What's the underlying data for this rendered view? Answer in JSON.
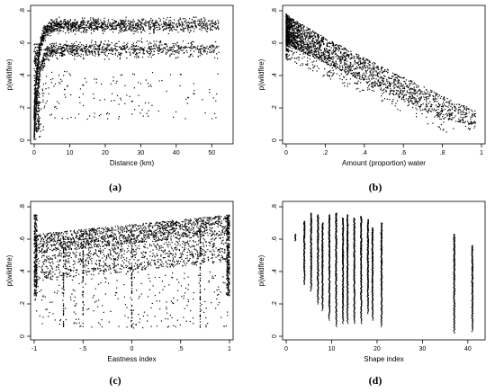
{
  "captions": {
    "a": "(a)",
    "b": "(b)",
    "c": "(c)",
    "d": "(d)"
  },
  "chart_data": [
    {
      "id": "a",
      "type": "scatter",
      "ylabel": "p(wildfire)",
      "xlabel": "Distance (km)",
      "xlim": [
        0,
        55
      ],
      "ylim": [
        0,
        0.8
      ],
      "xticks": [
        0,
        10,
        20,
        30,
        40,
        50
      ],
      "xtick_labels": [
        "0",
        "10",
        "20",
        "30",
        "40",
        "50"
      ],
      "yticks": [
        0,
        0.2,
        0.4,
        0.6,
        0.8
      ],
      "ytick_labels": [
        "0",
        ".2",
        ".4",
        ".6",
        ".8"
      ],
      "point_color": "#000000",
      "pattern": "saturating rise from ~0.05 at 0 km to a main band ~0.58–0.75 beyond 10 km, with a lower sub-band ~0.45–0.6 and sparse points down to ~0.1"
    },
    {
      "id": "b",
      "type": "scatter",
      "ylabel": "p(wildfire)",
      "xlabel": "Amount (proportion) water",
      "xlim": [
        0,
        1
      ],
      "ylim": [
        0,
        0.8
      ],
      "xticks": [
        0,
        0.2,
        0.4,
        0.6,
        0.8,
        1
      ],
      "xtick_labels": [
        "0",
        ".2",
        ".4",
        ".6",
        ".8",
        "1"
      ],
      "yticks": [
        0,
        0.2,
        0.4,
        0.6,
        0.8
      ],
      "ytick_labels": [
        "0",
        ".2",
        ".4",
        ".6",
        ".8"
      ],
      "point_color": "#000000",
      "pattern": "dense band ~0.5–0.78 near 0 declining to ~0.05–0.15 at 0.95"
    },
    {
      "id": "c",
      "type": "scatter",
      "ylabel": "p(wildfire)",
      "xlabel": "Eastness index",
      "xlim": [
        -1,
        1
      ],
      "ylim": [
        0,
        0.8
      ],
      "xticks": [
        -1,
        -0.5,
        0,
        0.5,
        1
      ],
      "xtick_labels": [
        "-1",
        "-.5",
        "0",
        ".5",
        "1"
      ],
      "yticks": [
        0,
        0.2,
        0.4,
        0.6,
        0.8
      ],
      "ytick_labels": [
        "0",
        ".2",
        ".4",
        ".6",
        ".8"
      ],
      "point_color": "#000000",
      "pattern": "upper band rising from ~0.6 at -1 to ~0.75 at 1, lower band ~0.3–0.55, vertical streaks at -0.7, -0.5, 0, 0.7"
    },
    {
      "id": "d",
      "type": "scatter",
      "ylabel": "p(wildfire)",
      "xlabel": "Shape index",
      "xlim": [
        0,
        43
      ],
      "ylim": [
        0,
        0.8
      ],
      "xticks": [
        0,
        10,
        20,
        30,
        40
      ],
      "xtick_labels": [
        "0",
        "10",
        "20",
        "30",
        "40"
      ],
      "yticks": [
        0,
        0.2,
        0.4,
        0.6,
        0.8
      ],
      "ytick_labels": [
        "0",
        ".2",
        ".4",
        ".6",
        ".8"
      ],
      "point_color": "#000000",
      "columns": [
        {
          "x": 2,
          "ymin": 0.59,
          "ymax": 0.63
        },
        {
          "x": 4,
          "ymin": 0.32,
          "ymax": 0.71
        },
        {
          "x": 5.5,
          "ymin": 0.28,
          "ymax": 0.76
        },
        {
          "x": 7,
          "ymin": 0.2,
          "ymax": 0.75
        },
        {
          "x": 8,
          "ymin": 0.16,
          "ymax": 0.7
        },
        {
          "x": 9.5,
          "ymin": 0.1,
          "ymax": 0.75
        },
        {
          "x": 11,
          "ymin": 0.06,
          "ymax": 0.76
        },
        {
          "x": 12.5,
          "ymin": 0.08,
          "ymax": 0.73
        },
        {
          "x": 13.5,
          "ymin": 0.08,
          "ymax": 0.75
        },
        {
          "x": 15,
          "ymin": 0.08,
          "ymax": 0.73
        },
        {
          "x": 16.5,
          "ymin": 0.08,
          "ymax": 0.74
        },
        {
          "x": 18,
          "ymin": 0.14,
          "ymax": 0.72
        },
        {
          "x": 19,
          "ymin": 0.1,
          "ymax": 0.67
        },
        {
          "x": 21,
          "ymin": 0.06,
          "ymax": 0.7
        },
        {
          "x": 37,
          "ymin": 0.02,
          "ymax": 0.63
        },
        {
          "x": 41,
          "ymin": 0.03,
          "ymax": 0.56
        }
      ]
    }
  ]
}
